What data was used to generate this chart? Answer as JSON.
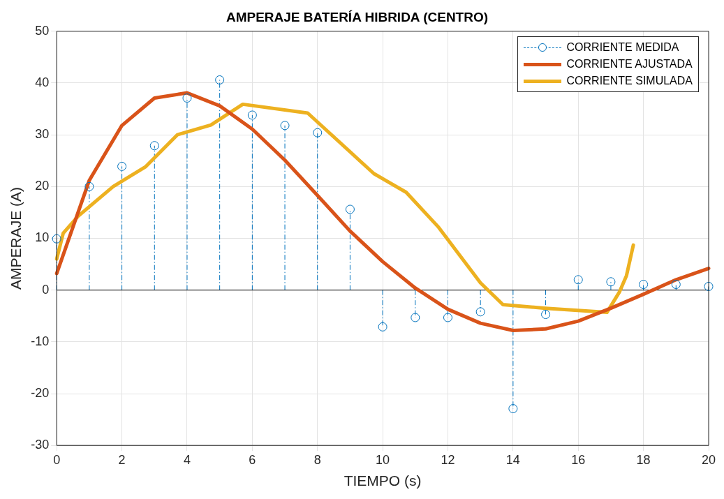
{
  "chart_data": {
    "type": "line",
    "title": "AMPERAJE BATERÍA HIBRIDA (CENTRO)",
    "xlabel": "TIEMPO (s)",
    "ylabel": "AMPERAJE (A)",
    "xlim": [
      0,
      20
    ],
    "xticks": [
      0,
      2,
      4,
      6,
      8,
      10,
      12,
      14,
      16,
      18,
      20
    ],
    "ylim": [
      -30,
      50
    ],
    "yticks": [
      -30,
      -20,
      -10,
      0,
      10,
      20,
      30,
      40,
      50
    ],
    "grid": true,
    "legend": "top right",
    "series": [
      {
        "name": "CORRIENTE MEDIDA",
        "type": "lollipop",
        "marker": "circle",
        "color": "#0072bd",
        "x": [
          0,
          1,
          2,
          3,
          4,
          5,
          6,
          7,
          8,
          9,
          10,
          11,
          12,
          13,
          14,
          15,
          16,
          17,
          18,
          19,
          20
        ],
        "values": [
          9.9,
          20.0,
          23.9,
          27.9,
          37.1,
          40.6,
          33.8,
          31.8,
          30.4,
          15.6,
          -7.1,
          -5.3,
          -5.3,
          -4.2,
          -22.9,
          -4.7,
          2.0,
          1.6,
          1.1,
          1.1,
          0.7
        ]
      },
      {
        "name": "CORRIENTE AJUSTADA",
        "type": "line",
        "marker": "none",
        "color": "#d95319",
        "x": [
          0,
          1,
          2,
          3,
          4,
          5,
          6,
          7,
          8,
          9,
          10,
          11,
          12,
          13,
          14,
          15,
          16,
          17,
          18,
          19,
          20
        ],
        "values": [
          3.2,
          21.2,
          31.8,
          37.1,
          38.1,
          35.6,
          31.1,
          25.1,
          18.3,
          11.4,
          5.5,
          0.4,
          -3.7,
          -6.4,
          -7.8,
          -7.5,
          -6.0,
          -3.5,
          -0.8,
          2.0,
          4.2
        ]
      },
      {
        "name": "CORRIENTE SIMULADA",
        "type": "line",
        "marker": "none",
        "color": "#edb120",
        "x": [
          0,
          0.2,
          0.66,
          1.73,
          2.72,
          3.7,
          4.73,
          5.71,
          7.7,
          9.73,
          10.72,
          11.72,
          13.0,
          13.69,
          15.0,
          16.88,
          17.26,
          17.48,
          17.69
        ],
        "values": [
          6.0,
          11.0,
          14.3,
          20.0,
          23.8,
          30.0,
          31.9,
          35.9,
          34.2,
          22.5,
          18.9,
          12.1,
          1.4,
          -2.8,
          -3.5,
          -4.3,
          -0.4,
          2.8,
          8.7
        ]
      }
    ]
  }
}
